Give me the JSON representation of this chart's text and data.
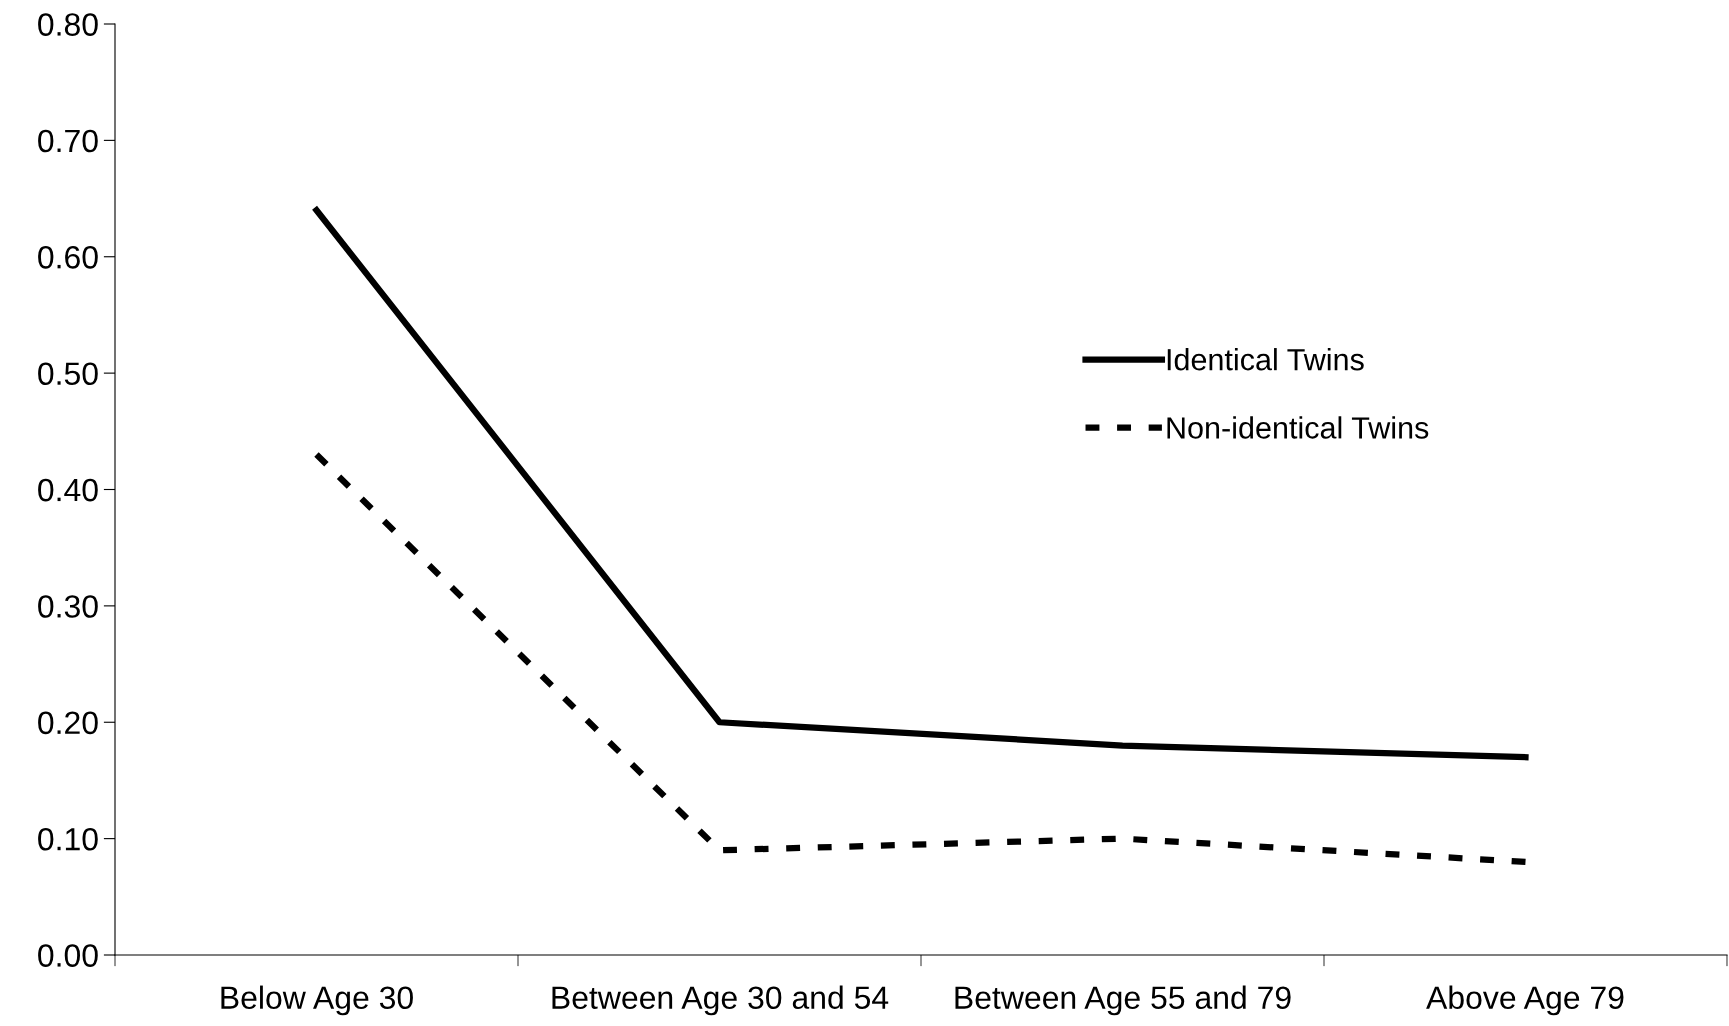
{
  "chart_data": {
    "type": "line",
    "categories": [
      "Below Age 30",
      "Between Age 30 and 54",
      "Between Age 55 and 79",
      "Above Age 79"
    ],
    "series": [
      {
        "name": "Identical Twins",
        "color": "#000000",
        "values": [
          0.64,
          0.2,
          0.18,
          0.17
        ],
        "line_style": "solid"
      },
      {
        "name": "Non-identical Twins",
        "color": "#000000",
        "values": [
          0.43,
          0.09,
          0.1,
          0.08
        ],
        "line_style": "dashed"
      }
    ],
    "ylim": [
      0,
      0.8
    ],
    "yticks": [
      {
        "value": 0,
        "label": "0.00"
      },
      {
        "value": 0.1,
        "label": "0.10"
      },
      {
        "value": 0.2,
        "label": "0.20"
      },
      {
        "value": 0.3,
        "label": "0.30"
      },
      {
        "value": 0.4,
        "label": "0.40"
      },
      {
        "value": 0.5,
        "label": "0.50"
      },
      {
        "value": 0.6,
        "label": "0.60"
      },
      {
        "value": 0.7,
        "label": "0.70"
      },
      {
        "value": 0.8,
        "label": "0.80"
      }
    ],
    "grid": false,
    "legend": "right",
    "marker": "none"
  }
}
